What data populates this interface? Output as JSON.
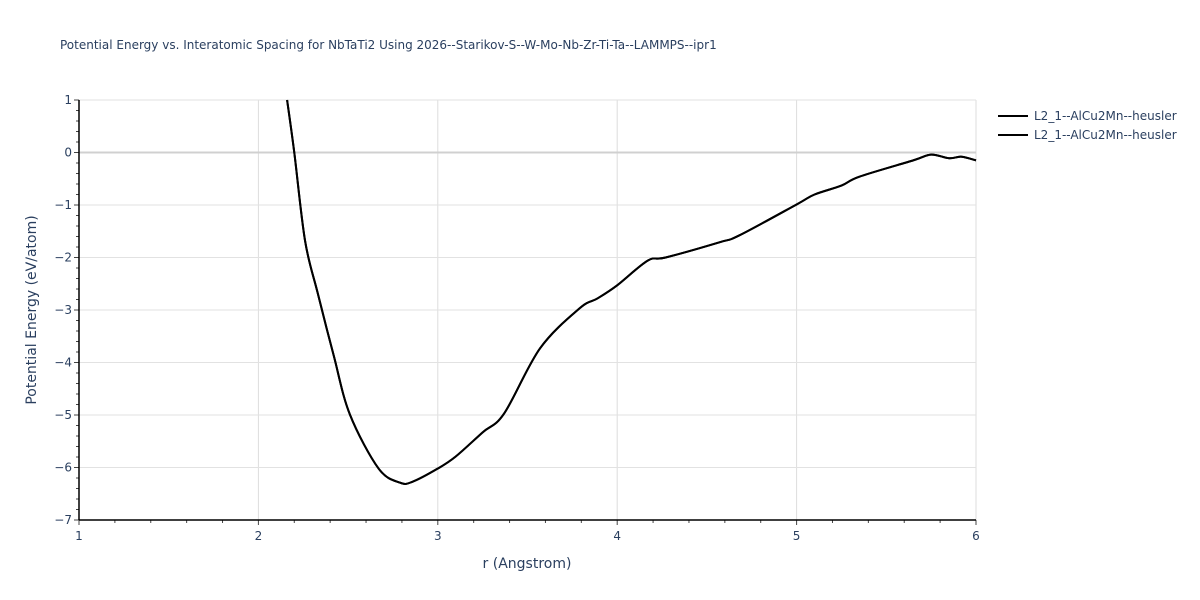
{
  "chart_data": {
    "type": "line",
    "title": "Potential Energy vs. Interatomic Spacing for NbTaTi2 Using 2026--Starikov-S--W-Mo-Nb-Zr-Ti-Ta--LAMMPS--ipr1",
    "xlabel": "r (Angstrom)",
    "ylabel": "Potential Energy (eV/atom)",
    "xlim": [
      1,
      6
    ],
    "ylim": [
      -7,
      1
    ],
    "x_ticks": [
      "1",
      "2",
      "3",
      "4",
      "5",
      "6"
    ],
    "y_ticks": [
      "1",
      "0",
      "−1",
      "−2",
      "−3",
      "−4",
      "−5",
      "−6",
      "−7"
    ],
    "grid": true,
    "legend_position": "top-right-outside",
    "series": [
      {
        "name": "L2_1--AlCu2Mn--heusler",
        "color": "#000000",
        "x": [
          2.16,
          2.2,
          2.26,
          2.33,
          2.42,
          2.51,
          2.67,
          2.79,
          2.86,
          3.0,
          3.1,
          3.25,
          3.37,
          3.57,
          3.79,
          3.89,
          4.0,
          4.17,
          4.27,
          4.57,
          4.68,
          5.0,
          5.1,
          5.25,
          5.35,
          5.65,
          5.75,
          5.85,
          5.92,
          6.0
        ],
        "y": [
          1.0,
          0.0,
          -1.68,
          -2.67,
          -3.87,
          -4.99,
          -6.02,
          -6.29,
          -6.27,
          -6.02,
          -5.79,
          -5.33,
          -4.97,
          -3.73,
          -2.97,
          -2.78,
          -2.53,
          -2.06,
          -2.0,
          -1.71,
          -1.58,
          -0.99,
          -0.8,
          -0.63,
          -0.46,
          -0.15,
          -0.04,
          -0.11,
          -0.08,
          -0.15
        ]
      },
      {
        "name": "L2_1--AlCu2Mn--heusler",
        "color": "#000000",
        "x": [
          2.16,
          2.2,
          2.26,
          2.33,
          2.42,
          2.51,
          2.67,
          2.79,
          2.86,
          3.0,
          3.1,
          3.25,
          3.37,
          3.57,
          3.79,
          3.89,
          4.0,
          4.17,
          4.27,
          4.57,
          4.68,
          5.0,
          5.1,
          5.25,
          5.35,
          5.65,
          5.75,
          5.85,
          5.92,
          6.0
        ],
        "y": [
          1.0,
          0.0,
          -1.68,
          -2.67,
          -3.87,
          -4.99,
          -6.02,
          -6.29,
          -6.27,
          -6.02,
          -5.79,
          -5.33,
          -4.97,
          -3.73,
          -2.97,
          -2.78,
          -2.53,
          -2.06,
          -2.0,
          -1.71,
          -1.58,
          -0.99,
          -0.8,
          -0.63,
          -0.46,
          -0.15,
          -0.04,
          -0.11,
          -0.08,
          -0.15
        ]
      }
    ]
  },
  "legend": {
    "items": [
      {
        "label": "L2_1--AlCu2Mn--heusler"
      },
      {
        "label": "L2_1--AlCu2Mn--heusler"
      }
    ]
  }
}
